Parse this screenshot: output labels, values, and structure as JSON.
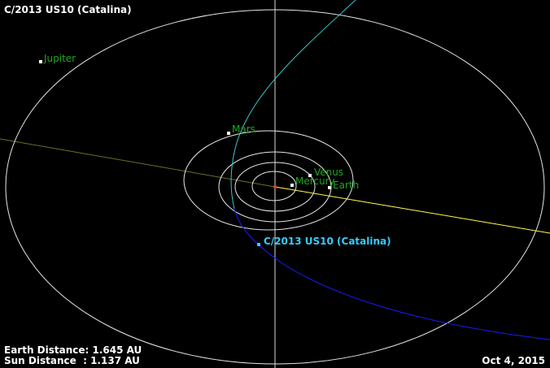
{
  "title": "C/2013 US10 (Catalina)",
  "readouts": {
    "earth_distance": "Earth Distance: 1.645 AU",
    "sun_distance": "Sun Distance  : 1.137 AU",
    "date": "Oct 4, 2015"
  },
  "bodies": {
    "jupiter": "Jupiter",
    "mars": "Mars",
    "venus": "Venus",
    "mercury": "Mercury",
    "earth": "Earth",
    "comet": "C/2013 US10 (Catalina)"
  },
  "colors": {
    "background": "#000000",
    "orbit": "#e6e6e6",
    "planet_label": "#1fa61f",
    "comet_label": "#33ccff",
    "comet_orbit_above": "#39c6cc",
    "comet_orbit_below": "#1a1aff",
    "ecliptic_far": "#6e6e28",
    "ecliptic_near": "#ffff4d",
    "axis": "#d9d9d9",
    "sun": "#ff3b1a"
  }
}
